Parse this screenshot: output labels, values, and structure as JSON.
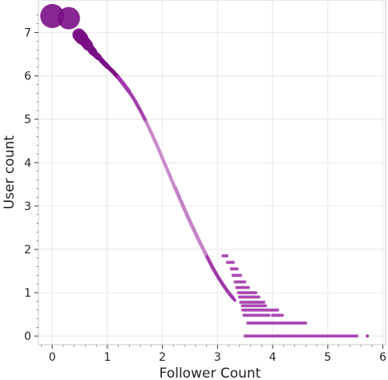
{
  "chart_data": {
    "type": "scatter",
    "xlabel": "Follower Count",
    "ylabel": "User count",
    "xlim": [
      -0.25,
      6.05
    ],
    "ylim": [
      -0.2,
      7.75
    ],
    "xticks": [
      0,
      1,
      2,
      3,
      4,
      5,
      6
    ],
    "yticks": [
      0,
      1,
      2,
      3,
      4,
      5,
      6,
      7
    ],
    "grid": true,
    "colors": {
      "dark": "#7a0f86",
      "mid": "#a338ab",
      "light": "#c785c9"
    },
    "curve": [
      [
        0.0,
        7.38
      ],
      [
        0.3,
        7.33
      ],
      [
        0.48,
        6.95
      ],
      [
        0.6,
        6.78
      ],
      [
        0.7,
        6.62
      ],
      [
        0.78,
        6.5
      ],
      [
        0.85,
        6.42
      ],
      [
        0.9,
        6.35
      ],
      [
        0.95,
        6.28
      ],
      [
        1.0,
        6.22
      ],
      [
        1.1,
        6.1
      ],
      [
        1.2,
        5.96
      ],
      [
        1.3,
        5.8
      ],
      [
        1.4,
        5.63
      ],
      [
        1.5,
        5.43
      ],
      [
        1.6,
        5.2
      ],
      [
        1.7,
        4.95
      ],
      [
        1.8,
        4.68
      ],
      [
        1.9,
        4.4
      ],
      [
        2.0,
        4.1
      ],
      [
        2.1,
        3.8
      ],
      [
        2.2,
        3.5
      ],
      [
        2.3,
        3.2
      ],
      [
        2.4,
        2.91
      ],
      [
        2.5,
        2.63
      ],
      [
        2.6,
        2.36
      ],
      [
        2.7,
        2.1
      ],
      [
        2.8,
        1.85
      ],
      [
        2.9,
        1.6
      ],
      [
        3.0,
        1.38
      ],
      [
        3.1,
        1.18
      ],
      [
        3.2,
        1.0
      ],
      [
        3.3,
        0.85
      ]
    ],
    "tail_rows": [
      {
        "y": 1.85,
        "xmin": 3.1,
        "xmax": 3.2
      },
      {
        "y": 1.7,
        "xmin": 3.18,
        "xmax": 3.3
      },
      {
        "y": 1.55,
        "xmin": 3.25,
        "xmax": 3.38
      },
      {
        "y": 1.4,
        "xmin": 3.28,
        "xmax": 3.45
      },
      {
        "y": 1.25,
        "xmin": 3.32,
        "xmax": 3.52
      },
      {
        "y": 1.12,
        "xmin": 3.35,
        "xmax": 3.58
      },
      {
        "y": 1.0,
        "xmin": 3.38,
        "xmax": 3.7
      },
      {
        "y": 0.9,
        "xmin": 3.4,
        "xmax": 3.78
      },
      {
        "y": 0.78,
        "xmin": 3.42,
        "xmax": 3.85
      },
      {
        "y": 0.7,
        "xmin": 3.45,
        "xmax": 3.88
      },
      {
        "y": 0.6,
        "xmin": 3.46,
        "xmax": 4.1
      },
      {
        "y": 0.48,
        "xmin": 3.48,
        "xmax": 3.95
      },
      {
        "y": 0.48,
        "xmin": 4.0,
        "xmax": 4.2
      },
      {
        "y": 0.3,
        "xmin": 3.55,
        "xmax": 4.62
      },
      {
        "y": 0.0,
        "xmin": 3.5,
        "xmax": 5.55
      }
    ],
    "outliers": [
      [
        5.72,
        0.0
      ]
    ]
  }
}
